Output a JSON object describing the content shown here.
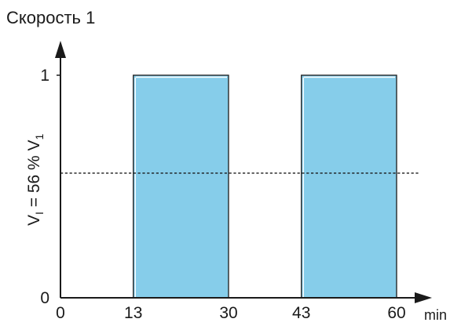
{
  "chart_data": {
    "type": "bar",
    "title": "Скорость 1",
    "xlabel": "min",
    "ylabel_main": "V",
    "ylabel_main_sub": "I",
    "ylabel_rest": " = 56 % V",
    "ylabel_rest_sub": "1",
    "x_ticks": [
      "0",
      "13",
      "30",
      "43",
      "60"
    ],
    "y_ticks": [
      "0",
      "1"
    ],
    "xlim": [
      0,
      60
    ],
    "ylim": [
      0,
      1
    ],
    "bars": [
      {
        "x_start": 13,
        "x_end": 30,
        "value": 1
      },
      {
        "x_start": 43,
        "x_end": 60,
        "value": 1
      }
    ],
    "reference_line": {
      "value": 0.56,
      "style": "dotted"
    },
    "bar_color": "#86cdea",
    "bar_edge_color": "#1a1a1a",
    "axis_color": "#1a1a1a",
    "grid": false
  }
}
